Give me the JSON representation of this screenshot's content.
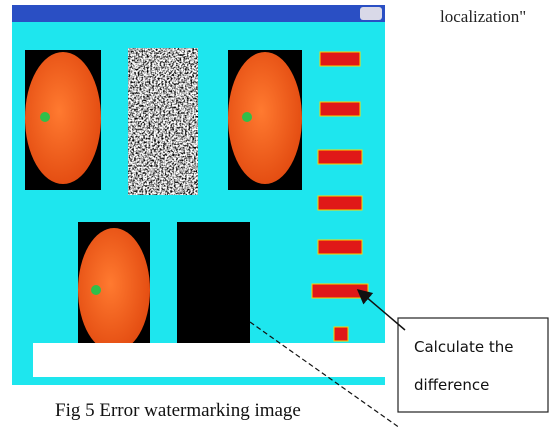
{
  "header": {
    "snippet": "localization\""
  },
  "callout": {
    "lines": [
      "Calculate the",
      "difference"
    ]
  },
  "caption": "Fig 5 Error watermarking image"
}
